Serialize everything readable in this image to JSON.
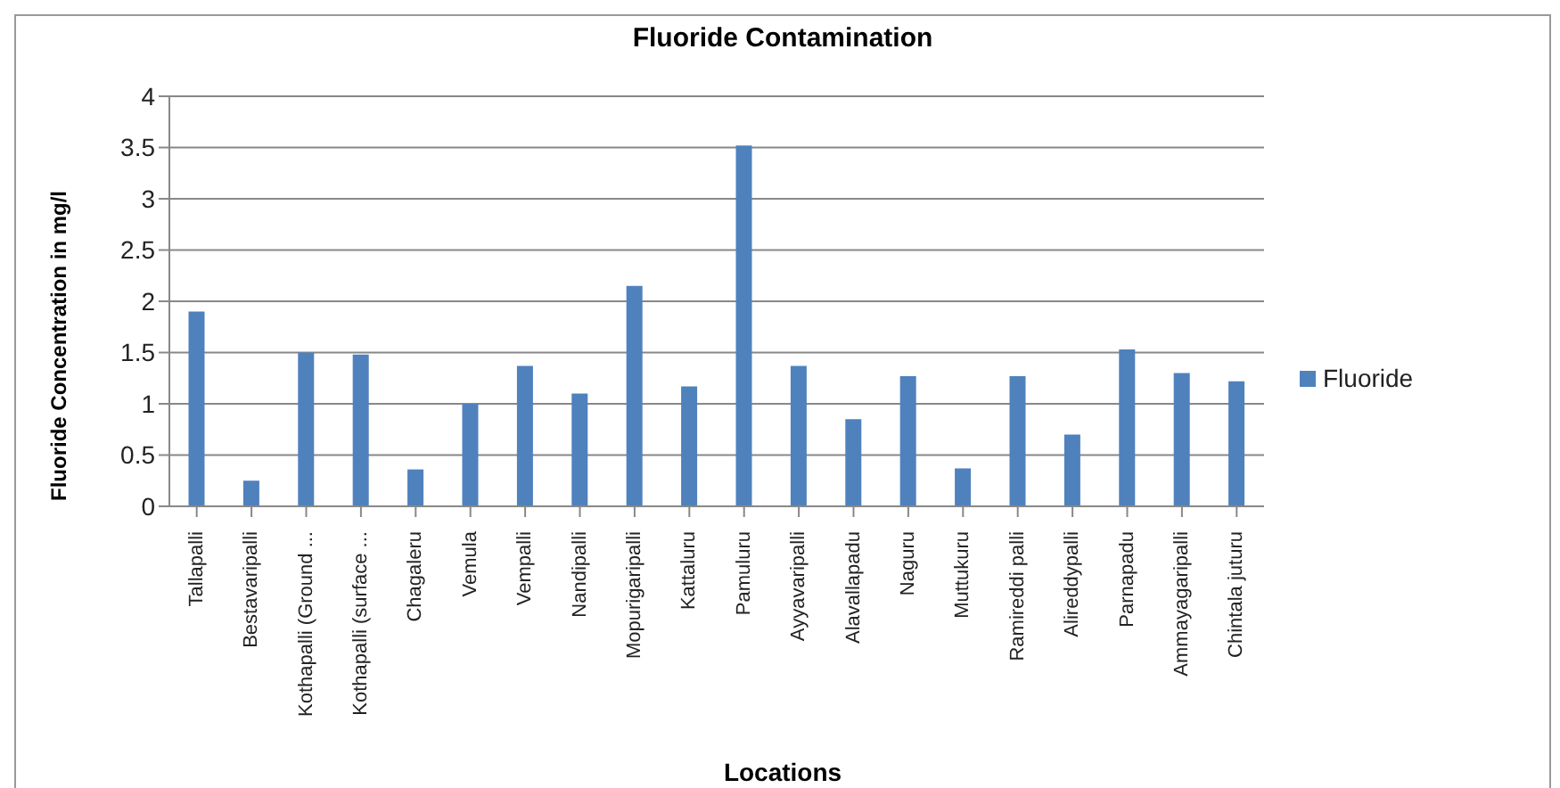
{
  "chart_data": {
    "type": "bar",
    "title": "Fluoride Contamination",
    "xlabel": "Locations",
    "ylabel": "Fluoride Concentration in mg/l",
    "categories": [
      "Tallapalli",
      "Bestavaripalli",
      "Kothapalli (Ground ...",
      "Kothapalli (surface ...",
      "Chagaleru",
      "Vemula",
      "Vempalli",
      "Nandipalli",
      "Mopurigaripalli",
      "Kattaluru",
      "Pamuluru",
      "Ayyavaripalli",
      "Alavallapadu",
      "Naguru",
      "Muttukuru",
      "Ramireddi palli",
      "Alireddypalli",
      "Parnapadu",
      "Ammayagaripalli",
      "Chintala juturu"
    ],
    "series": [
      {
        "name": "Fluoride",
        "color": "#4f81bd",
        "values": [
          1.9,
          0.25,
          1.5,
          1.48,
          0.36,
          1.0,
          1.37,
          1.1,
          2.15,
          1.17,
          3.52,
          1.37,
          0.85,
          1.27,
          0.37,
          1.27,
          0.7,
          1.53,
          1.3,
          1.22
        ]
      }
    ],
    "ylim": [
      0,
      4
    ],
    "yticks": [
      0,
      0.5,
      1,
      1.5,
      2,
      2.5,
      3,
      3.5,
      4
    ],
    "grid": "y",
    "legend": "right"
  }
}
